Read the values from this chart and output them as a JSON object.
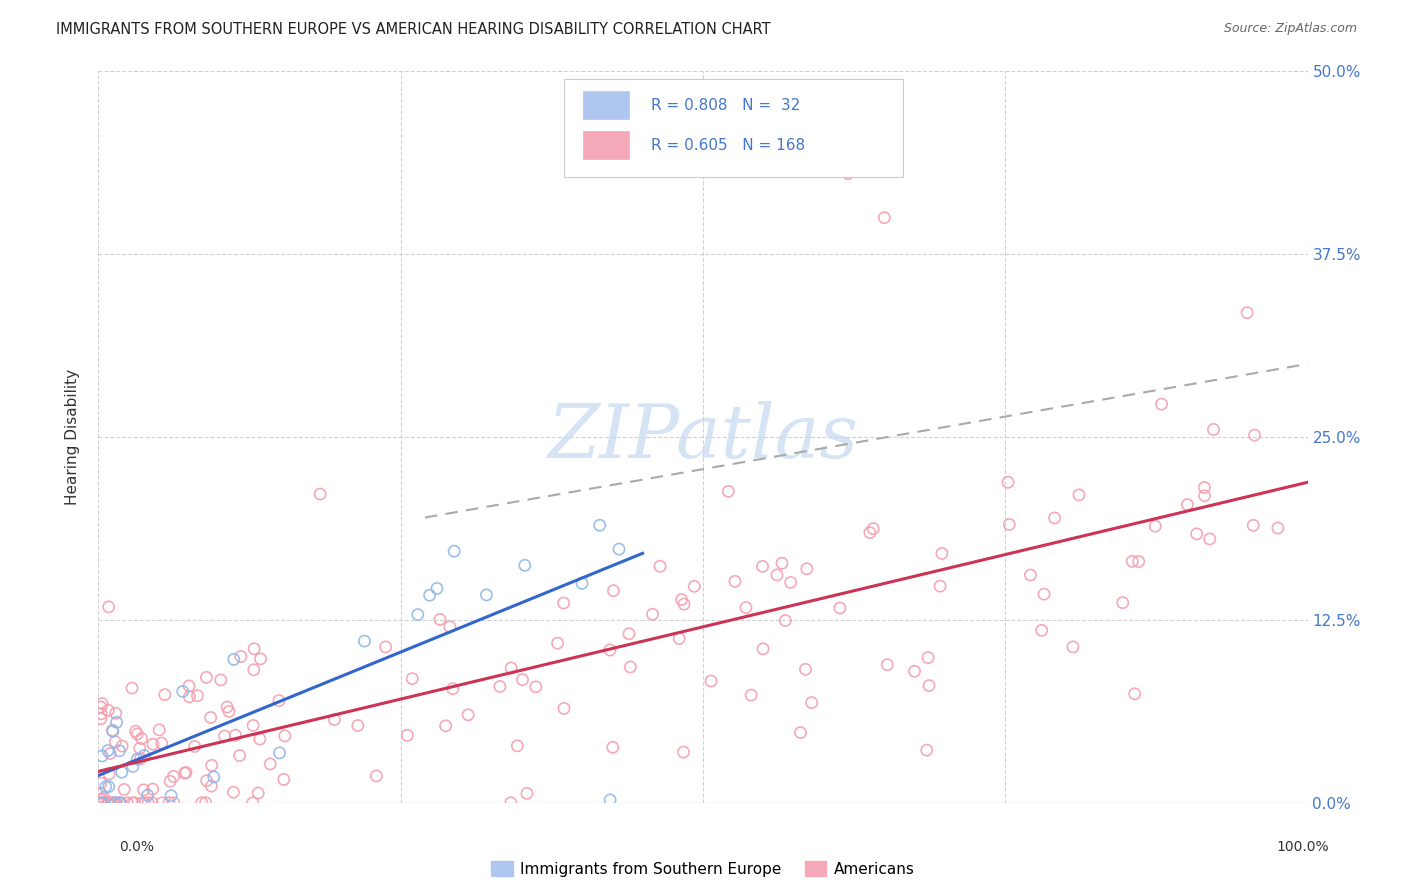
{
  "title": "IMMIGRANTS FROM SOUTHERN EUROPE VS AMERICAN HEARING DISABILITY CORRELATION CHART",
  "source": "Source: ZipAtlas.com",
  "ylabel": "Hearing Disability",
  "ytick_values": [
    0.0,
    0.125,
    0.25,
    0.375,
    0.5
  ],
  "ytick_labels_right": [
    "0.0%",
    "12.5%",
    "25.0%",
    "37.5%",
    "50.0%"
  ],
  "xlim": [
    0.0,
    1.0
  ],
  "ylim": [
    0.0,
    0.5
  ],
  "background_color": "#ffffff",
  "grid_color": "#cccccc",
  "blue_scatter_color": "#90b8e8",
  "pink_scatter_color": "#f4a0b0",
  "blue_line_color": "#3366cc",
  "pink_line_color": "#cc3355",
  "dash_line_color": "#aaaaaa",
  "right_tick_color": "#4477cc",
  "watermark_color": "#c5d8f0",
  "legend_box_color": "#e8e8e8",
  "blue_R": "0.808",
  "blue_N": "32",
  "pink_R": "0.605",
  "pink_N": "168",
  "legend_text_color": "#222222",
  "legend_value_color": "#4477cc"
}
